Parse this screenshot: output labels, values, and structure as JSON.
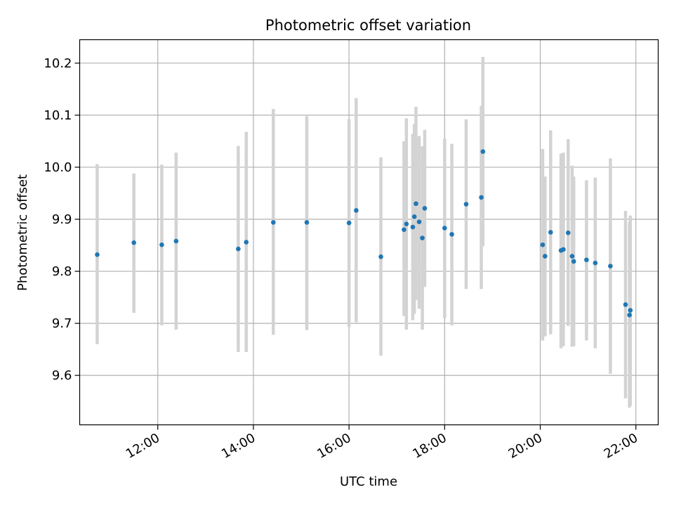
{
  "chart_data": {
    "type": "scatter",
    "title": "Photometric offset variation",
    "xlabel": "UTC time",
    "ylabel": "Photometric offset",
    "xlim": [
      "10:22",
      "22:28"
    ],
    "ylim": [
      9.505,
      10.245
    ],
    "grid": true,
    "x_ticks": [
      "12:00",
      "14:00",
      "16:00",
      "18:00",
      "20:00",
      "22:00"
    ],
    "y_ticks": [
      "9.6",
      "9.7",
      "9.8",
      "9.9",
      "10.0",
      "10.1",
      "10.2"
    ],
    "point_color": "#1f77b4",
    "errorbar_color": "#d3d3d3",
    "points": [
      {
        "t": "10:44",
        "y": 9.832,
        "lo": 9.66,
        "hi": 10.006
      },
      {
        "t": "11:30",
        "y": 9.855,
        "lo": 9.72,
        "hi": 9.988
      },
      {
        "t": "12:05",
        "y": 9.851,
        "lo": 9.696,
        "hi": 10.005
      },
      {
        "t": "12:23",
        "y": 9.858,
        "lo": 9.688,
        "hi": 10.028
      },
      {
        "t": "13:41",
        "y": 9.843,
        "lo": 9.645,
        "hi": 10.041
      },
      {
        "t": "13:51",
        "y": 9.856,
        "lo": 9.645,
        "hi": 10.068
      },
      {
        "t": "14:25",
        "y": 9.894,
        "lo": 9.678,
        "hi": 10.112
      },
      {
        "t": "15:07",
        "y": 9.894,
        "lo": 9.687,
        "hi": 10.098
      },
      {
        "t": "16:00",
        "y": 9.893,
        "lo": 9.693,
        "hi": 10.092
      },
      {
        "t": "16:09",
        "y": 9.917,
        "lo": 9.702,
        "hi": 10.133
      },
      {
        "t": "16:40",
        "y": 9.828,
        "lo": 9.638,
        "hi": 10.019
      },
      {
        "t": "17:09",
        "y": 9.88,
        "lo": 9.714,
        "hi": 10.05
      },
      {
        "t": "17:12",
        "y": 9.891,
        "lo": 9.688,
        "hi": 10.094
      },
      {
        "t": "17:20",
        "y": 9.885,
        "lo": 9.706,
        "hi": 10.064
      },
      {
        "t": "17:22",
        "y": 9.905,
        "lo": 9.718,
        "hi": 10.083
      },
      {
        "t": "17:24",
        "y": 9.93,
        "lo": 9.745,
        "hi": 10.116
      },
      {
        "t": "17:28",
        "y": 9.895,
        "lo": 9.728,
        "hi": 10.06
      },
      {
        "t": "17:32",
        "y": 9.864,
        "lo": 9.688,
        "hi": 10.04
      },
      {
        "t": "17:35",
        "y": 9.921,
        "lo": 9.77,
        "hi": 10.072
      },
      {
        "t": "18:00",
        "y": 9.883,
        "lo": 9.71,
        "hi": 10.055
      },
      {
        "t": "18:09",
        "y": 9.871,
        "lo": 9.696,
        "hi": 10.045
      },
      {
        "t": "18:27",
        "y": 9.929,
        "lo": 9.766,
        "hi": 10.092
      },
      {
        "t": "18:46",
        "y": 9.942,
        "lo": 9.766,
        "hi": 10.118
      },
      {
        "t": "18:48",
        "y": 10.03,
        "lo": 9.848,
        "hi": 10.212
      },
      {
        "t": "20:03",
        "y": 9.851,
        "lo": 9.667,
        "hi": 10.035
      },
      {
        "t": "20:06",
        "y": 9.829,
        "lo": 9.675,
        "hi": 9.982
      },
      {
        "t": "20:13",
        "y": 9.875,
        "lo": 9.679,
        "hi": 10.071
      },
      {
        "t": "20:26",
        "y": 9.84,
        "lo": 9.652,
        "hi": 10.026
      },
      {
        "t": "20:29",
        "y": 9.842,
        "lo": 9.656,
        "hi": 10.028
      },
      {
        "t": "20:35",
        "y": 9.874,
        "lo": 9.695,
        "hi": 10.054
      },
      {
        "t": "20:40",
        "y": 9.829,
        "lo": 9.655,
        "hi": 10.003
      },
      {
        "t": "20:42",
        "y": 9.819,
        "lo": 9.656,
        "hi": 9.982
      },
      {
        "t": "20:58",
        "y": 9.822,
        "lo": 9.667,
        "hi": 9.975
      },
      {
        "t": "21:09",
        "y": 9.816,
        "lo": 9.652,
        "hi": 9.98
      },
      {
        "t": "21:28",
        "y": 9.81,
        "lo": 9.603,
        "hi": 10.017
      },
      {
        "t": "21:47",
        "y": 9.736,
        "lo": 9.556,
        "hi": 9.916
      },
      {
        "t": "21:52",
        "y": 9.716,
        "lo": 9.538,
        "hi": 9.895
      },
      {
        "t": "21:53",
        "y": 9.725,
        "lo": 9.542,
        "hi": 9.907
      }
    ]
  }
}
